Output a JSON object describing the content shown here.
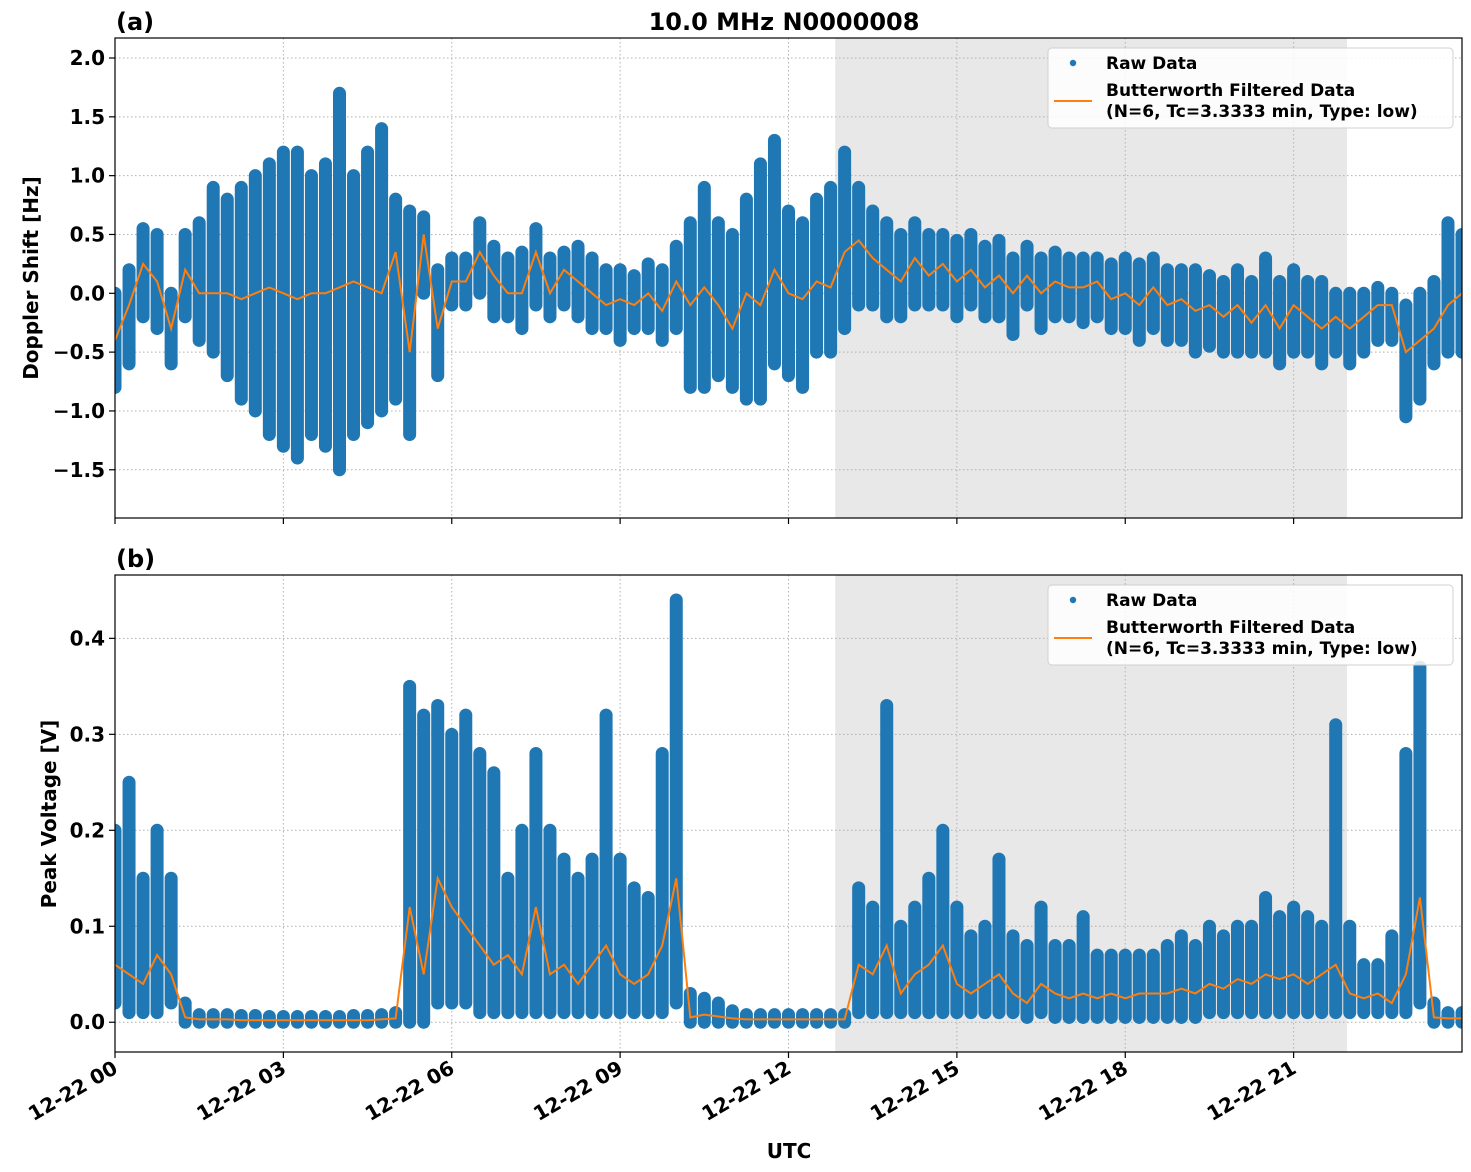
{
  "chart_data": [
    {
      "type": "scatter+line",
      "panel_label": "(a)",
      "title": "10.0 MHz N0000008",
      "ylabel": "Doppler Shift [Hz]",
      "xlabel": "",
      "xlim": [
        "12-22 00:00",
        "12-23 00:00"
      ],
      "ylim": [
        -1.91,
        2.17
      ],
      "yticks": [
        -1.5,
        -1.0,
        -0.5,
        0.0,
        0.5,
        1.0,
        1.5,
        2.0
      ],
      "ytick_labels": [
        "−1.5",
        "−1.0",
        "−0.5",
        "0.0",
        "0.5",
        "1.0",
        "1.5",
        "2.0"
      ],
      "grid": true,
      "legend_placement": "top-right",
      "shaded_span": [
        "12-22 12:50",
        "12-22 21:57"
      ],
      "series": [
        {
          "name": "Raw Data",
          "kind": "points",
          "color": "#1f77b4",
          "min": [
            -0.8,
            -0.6,
            -0.2,
            -0.3,
            -0.6,
            -0.2,
            -0.4,
            -0.5,
            -0.7,
            -0.9,
            -1.0,
            -1.2,
            -1.3,
            -1.4,
            -1.2,
            -1.3,
            -1.5,
            -1.2,
            -1.1,
            -1.0,
            -0.9,
            -1.2,
            0.0,
            -0.7,
            -0.1,
            -0.1,
            0.0,
            -0.2,
            -0.2,
            -0.3,
            -0.1,
            -0.2,
            -0.1,
            -0.2,
            -0.3,
            -0.3,
            -0.4,
            -0.3,
            -0.3,
            -0.4,
            -0.3,
            -0.8,
            -0.8,
            -0.7,
            -0.8,
            -0.9,
            -0.9,
            -0.6,
            -0.7,
            -0.8,
            -0.5,
            -0.5,
            -0.3,
            -0.1,
            -0.1,
            -0.2,
            -0.2,
            -0.1,
            -0.1,
            -0.1,
            -0.2,
            -0.1,
            -0.2,
            -0.2,
            -0.35,
            -0.1,
            -0.3,
            -0.2,
            -0.2,
            -0.25,
            -0.2,
            -0.3,
            -0.3,
            -0.4,
            -0.3,
            -0.4,
            -0.4,
            -0.5,
            -0.45,
            -0.5,
            -0.5,
            -0.5,
            -0.5,
            -0.6,
            -0.5,
            -0.5,
            -0.6,
            -0.5,
            -0.6,
            -0.5,
            -0.4,
            -0.4,
            -1.05,
            -0.9,
            -0.6,
            -0.5,
            -0.5
          ],
          "max": [
            0.0,
            0.2,
            0.55,
            0.5,
            0.0,
            0.5,
            0.6,
            0.9,
            0.8,
            0.9,
            1.0,
            1.1,
            1.2,
            1.2,
            1.0,
            1.1,
            1.7,
            1.0,
            1.2,
            1.4,
            0.8,
            0.7,
            0.65,
            0.2,
            0.3,
            0.3,
            0.6,
            0.4,
            0.3,
            0.35,
            0.55,
            0.3,
            0.35,
            0.4,
            0.3,
            0.2,
            0.2,
            0.15,
            0.25,
            0.2,
            0.4,
            0.6,
            0.9,
            0.6,
            0.5,
            0.8,
            1.1,
            1.3,
            0.7,
            0.6,
            0.8,
            0.9,
            1.2,
            0.9,
            0.7,
            0.6,
            0.5,
            0.6,
            0.5,
            0.5,
            0.45,
            0.5,
            0.4,
            0.45,
            0.3,
            0.4,
            0.3,
            0.35,
            0.3,
            0.3,
            0.3,
            0.25,
            0.3,
            0.25,
            0.3,
            0.2,
            0.2,
            0.2,
            0.15,
            0.1,
            0.2,
            0.1,
            0.3,
            0.1,
            0.2,
            0.1,
            0.1,
            0.0,
            0.0,
            0.0,
            0.05,
            0.0,
            -0.1,
            0.0,
            0.1,
            0.6,
            0.5
          ]
        },
        {
          "name": "Butterworth Filtered Data\n(N=6, Tc=3.3333 min, Type: low)",
          "kind": "line",
          "color": "#ff7f0e",
          "values": [
            -0.4,
            -0.1,
            0.25,
            0.1,
            -0.3,
            0.2,
            0.0,
            0.0,
            0.0,
            -0.05,
            0.0,
            0.05,
            0.0,
            -0.05,
            0.0,
            0.0,
            0.05,
            0.1,
            0.05,
            0.0,
            0.35,
            -0.5,
            0.5,
            -0.3,
            0.1,
            0.1,
            0.35,
            0.15,
            0.0,
            0.0,
            0.35,
            0.0,
            0.2,
            0.1,
            0.0,
            -0.1,
            -0.05,
            -0.1,
            0.0,
            -0.15,
            0.1,
            -0.1,
            0.05,
            -0.1,
            -0.3,
            0.0,
            -0.1,
            0.2,
            0.0,
            -0.05,
            0.1,
            0.05,
            0.35,
            0.45,
            0.3,
            0.2,
            0.1,
            0.3,
            0.15,
            0.25,
            0.1,
            0.2,
            0.05,
            0.15,
            0.0,
            0.15,
            0.0,
            0.1,
            0.05,
            0.05,
            0.1,
            -0.05,
            0.0,
            -0.1,
            0.05,
            -0.1,
            -0.05,
            -0.15,
            -0.1,
            -0.2,
            -0.1,
            -0.25,
            -0.1,
            -0.3,
            -0.1,
            -0.2,
            -0.3,
            -0.2,
            -0.3,
            -0.2,
            -0.1,
            -0.1,
            -0.5,
            -0.4,
            -0.3,
            -0.1,
            0.0
          ]
        }
      ],
      "legend": {
        "raw": "Raw Data",
        "filtered_line1": "Butterworth Filtered Data",
        "filtered_line2": "(N=6, Tc=3.3333 min, Type: low)"
      }
    },
    {
      "type": "scatter+line",
      "panel_label": "(b)",
      "ylabel": "Peak Voltage [V]",
      "xlabel": "UTC",
      "xlim": [
        "12-22 00:00",
        "12-23 00:00"
      ],
      "ylim": [
        -0.031,
        0.466
      ],
      "yticks": [
        0.0,
        0.1,
        0.2,
        0.3,
        0.4
      ],
      "ytick_labels": [
        "0.0",
        "0.1",
        "0.2",
        "0.3",
        "0.4"
      ],
      "xticks": [
        "12-22 00",
        "12-22 03",
        "12-22 06",
        "12-22 09",
        "12-22 12",
        "12-22 15",
        "12-22 18",
        "12-22 21"
      ],
      "grid": true,
      "legend_placement": "top-right",
      "shaded_span": [
        "12-22 12:50",
        "12-22 21:57"
      ],
      "series": [
        {
          "name": "Raw Data",
          "kind": "points",
          "color": "#1f77b4",
          "min": [
            0.02,
            0.01,
            0.01,
            0.01,
            0.02,
            0.0,
            0,
            0,
            0,
            0,
            0,
            0,
            0,
            0,
            0,
            0,
            0,
            0,
            0,
            0,
            0,
            0.0,
            0.0,
            0.02,
            0.02,
            0.02,
            0.01,
            0.01,
            0.01,
            0.01,
            0.01,
            0.01,
            0.01,
            0.01,
            0.01,
            0.01,
            0.01,
            0.01,
            0.01,
            0.01,
            0.02,
            0.0,
            0.0,
            0.0,
            0.0,
            0,
            0,
            0,
            0,
            0,
            0,
            0,
            0,
            0.01,
            0.01,
            0.01,
            0.01,
            0.01,
            0.01,
            0.01,
            0.01,
            0.01,
            0.01,
            0.01,
            0.01,
            0.005,
            0.01,
            0.005,
            0.005,
            0.005,
            0.005,
            0.005,
            0.005,
            0.005,
            0.005,
            0.005,
            0.005,
            0.005,
            0.01,
            0.01,
            0.01,
            0.01,
            0.01,
            0.01,
            0.01,
            0.01,
            0.01,
            0.01,
            0.01,
            0.01,
            0.01,
            0.01,
            0.01,
            0.02,
            0.0,
            0.0,
            0.0
          ],
          "max": [
            0.2,
            0.25,
            0.15,
            0.2,
            0.15,
            0.02,
            0.008,
            0.008,
            0.008,
            0.007,
            0.007,
            0.006,
            0.006,
            0.006,
            0.006,
            0.006,
            0.006,
            0.007,
            0.007,
            0.008,
            0.01,
            0.35,
            0.32,
            0.33,
            0.3,
            0.32,
            0.28,
            0.26,
            0.15,
            0.2,
            0.28,
            0.2,
            0.17,
            0.15,
            0.17,
            0.32,
            0.17,
            0.14,
            0.13,
            0.28,
            0.44,
            0.03,
            0.025,
            0.02,
            0.012,
            0.008,
            0.008,
            0.008,
            0.008,
            0.008,
            0.008,
            0.008,
            0.008,
            0.14,
            0.12,
            0.33,
            0.1,
            0.12,
            0.15,
            0.2,
            0.12,
            0.09,
            0.1,
            0.17,
            0.09,
            0.08,
            0.12,
            0.08,
            0.08,
            0.11,
            0.07,
            0.07,
            0.07,
            0.07,
            0.07,
            0.08,
            0.09,
            0.08,
            0.1,
            0.09,
            0.1,
            0.1,
            0.13,
            0.11,
            0.12,
            0.11,
            0.1,
            0.31,
            0.1,
            0.06,
            0.06,
            0.09,
            0.28,
            0.37,
            0.02,
            0.01,
            0.01
          ]
        },
        {
          "name": "Butterworth Filtered Data\n(N=6, Tc=3.3333 min, Type: low)",
          "kind": "line",
          "color": "#ff7f0e",
          "values": [
            0.06,
            0.05,
            0.04,
            0.07,
            0.05,
            0.005,
            0.003,
            0.003,
            0.003,
            0.002,
            0.002,
            0.002,
            0.002,
            0.002,
            0.002,
            0.002,
            0.002,
            0.002,
            0.002,
            0.003,
            0.004,
            0.12,
            0.05,
            0.15,
            0.12,
            0.1,
            0.08,
            0.06,
            0.07,
            0.05,
            0.12,
            0.05,
            0.06,
            0.04,
            0.06,
            0.08,
            0.05,
            0.04,
            0.05,
            0.08,
            0.15,
            0.005,
            0.008,
            0.006,
            0.004,
            0.003,
            0.003,
            0.003,
            0.003,
            0.003,
            0.003,
            0.003,
            0.003,
            0.06,
            0.05,
            0.08,
            0.03,
            0.05,
            0.06,
            0.08,
            0.04,
            0.03,
            0.04,
            0.05,
            0.03,
            0.02,
            0.04,
            0.03,
            0.025,
            0.03,
            0.025,
            0.03,
            0.025,
            0.03,
            0.03,
            0.03,
            0.035,
            0.03,
            0.04,
            0.035,
            0.045,
            0.04,
            0.05,
            0.045,
            0.05,
            0.04,
            0.05,
            0.06,
            0.03,
            0.025,
            0.03,
            0.02,
            0.05,
            0.13,
            0.005,
            0.004,
            0.004
          ]
        }
      ],
      "legend": {
        "raw": "Raw Data",
        "filtered_line1": "Butterworth Filtered Data",
        "filtered_line2": "(N=6, Tc=3.3333 min, Type: low)"
      }
    }
  ],
  "colors": {
    "raw": "#1f77b4",
    "filtered": "#ff7f0e",
    "shade": "#e8e8e8"
  }
}
